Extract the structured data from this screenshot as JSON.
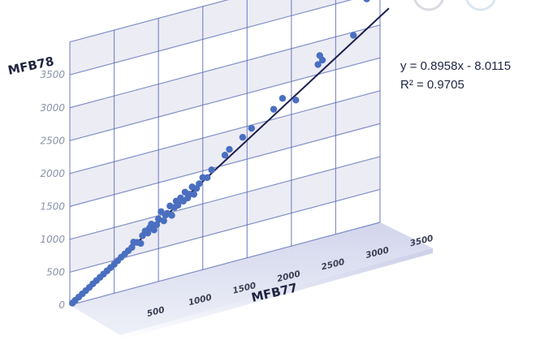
{
  "chart_data": {
    "type": "scatter",
    "xlabel": "MFB77",
    "ylabel": "MFB78",
    "x_ticks": [
      "500",
      "1000",
      "1500",
      "2000",
      "2500",
      "3000",
      "3500"
    ],
    "y_ticks": [
      "0",
      "500",
      "1000",
      "1500",
      "2000",
      "2500",
      "3000",
      "3500"
    ],
    "xlim": [
      0,
      3500
    ],
    "ylim": [
      0,
      4000
    ],
    "grid": true,
    "trendline": {
      "equation_label": "y = 0.8958x - 8.0115",
      "r2_label": "R² = 0.9705",
      "slope": 0.8958,
      "intercept": -8.0115,
      "x_range": [
        0,
        3600
      ]
    },
    "points": [
      [
        30,
        20
      ],
      [
        60,
        50
      ],
      [
        100,
        85
      ],
      [
        140,
        120
      ],
      [
        180,
        155
      ],
      [
        220,
        190
      ],
      [
        260,
        230
      ],
      [
        300,
        265
      ],
      [
        340,
        300
      ],
      [
        380,
        335
      ],
      [
        420,
        370
      ],
      [
        460,
        405
      ],
      [
        500,
        440
      ],
      [
        540,
        480
      ],
      [
        580,
        520
      ],
      [
        620,
        555
      ],
      [
        660,
        590
      ],
      [
        700,
        625
      ],
      [
        720,
        700
      ],
      [
        760,
        680
      ],
      [
        800,
        650
      ],
      [
        820,
        760
      ],
      [
        850,
        820
      ],
      [
        880,
        780
      ],
      [
        900,
        850
      ],
      [
        920,
        900
      ],
      [
        950,
        800
      ],
      [
        980,
        870
      ],
      [
        1000,
        950
      ],
      [
        1030,
        1050
      ],
      [
        1060,
        900
      ],
      [
        1080,
        980
      ],
      [
        1100,
        1000
      ],
      [
        1130,
        1100
      ],
      [
        1150,
        950
      ],
      [
        1180,
        1060
      ],
      [
        1200,
        1150
      ],
      [
        1220,
        1080
      ],
      [
        1250,
        1180
      ],
      [
        1280,
        1120
      ],
      [
        1300,
        1250
      ],
      [
        1330,
        1150
      ],
      [
        1350,
        1200
      ],
      [
        1380,
        1300
      ],
      [
        1400,
        1180
      ],
      [
        1430,
        1260
      ],
      [
        1460,
        1320
      ],
      [
        1500,
        1400
      ],
      [
        1550,
        1380
      ],
      [
        1600,
        1480
      ],
      [
        1750,
        1650
      ],
      [
        1800,
        1720
      ],
      [
        1950,
        1850
      ],
      [
        2050,
        1950
      ],
      [
        2300,
        2150
      ],
      [
        2400,
        2280
      ],
      [
        2550,
        2200
      ],
      [
        2800,
        2650
      ],
      [
        2850,
        2700
      ],
      [
        2820,
        2780
      ],
      [
        3200,
        2950
      ],
      [
        3350,
        3450
      ]
    ],
    "colors": {
      "points": "#4a6fc0",
      "trendline": "#1c2050",
      "wall": "#ececf4",
      "grid": "#5b6db8",
      "floor": "#c9cde6"
    }
  }
}
